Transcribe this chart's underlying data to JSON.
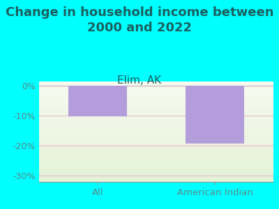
{
  "title": "Change in household income between\n2000 and 2022",
  "subtitle": "Elim, AK",
  "categories": [
    "All",
    "American Indian"
  ],
  "values": [
    -10.2,
    -19.2
  ],
  "bar_color": "#b39ddb",
  "background_color": "#00ffff",
  "plot_bg_light": "#f8faf0",
  "plot_bg_dark": "#e4f2d8",
  "title_color": "#1a6060",
  "subtitle_color": "#1a6060",
  "tick_label_color": "#5a8a8a",
  "grid_color": "#e8b8c8",
  "ylim": [
    -32,
    1.5
  ],
  "yticks": [
    0,
    -10,
    -20,
    -30
  ],
  "ytick_labels": [
    "0%",
    "-10%",
    "-20%",
    "-30%"
  ],
  "title_fontsize": 13,
  "subtitle_fontsize": 11,
  "bar_width": 0.5
}
